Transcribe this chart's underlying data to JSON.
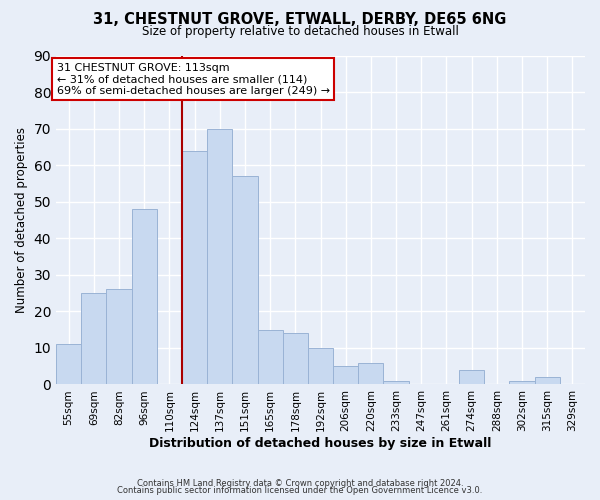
{
  "title1": "31, CHESTNUT GROVE, ETWALL, DERBY, DE65 6NG",
  "title2": "Size of property relative to detached houses in Etwall",
  "xlabel": "Distribution of detached houses by size in Etwall",
  "ylabel": "Number of detached properties",
  "bin_labels": [
    "55sqm",
    "69sqm",
    "82sqm",
    "96sqm",
    "110sqm",
    "124sqm",
    "137sqm",
    "151sqm",
    "165sqm",
    "178sqm",
    "192sqm",
    "206sqm",
    "220sqm",
    "233sqm",
    "247sqm",
    "261sqm",
    "274sqm",
    "288sqm",
    "302sqm",
    "315sqm",
    "329sqm"
  ],
  "bar_values": [
    11,
    25,
    26,
    48,
    0,
    64,
    70,
    57,
    15,
    14,
    10,
    5,
    6,
    1,
    0,
    0,
    4,
    0,
    1,
    2,
    0
  ],
  "bar_color": "#c8d9f0",
  "bar_edge_color": "#9ab3d5",
  "vline_position": 5,
  "vline_color": "#aa0000",
  "ylim": [
    0,
    90
  ],
  "yticks": [
    0,
    10,
    20,
    30,
    40,
    50,
    60,
    70,
    80,
    90
  ],
  "annotation_title": "31 CHESTNUT GROVE: 113sqm",
  "annotation_line1": "← 31% of detached houses are smaller (114)",
  "annotation_line2": "69% of semi-detached houses are larger (249) →",
  "annotation_box_color": "#ffffff",
  "annotation_box_edge": "#cc0000",
  "footer1": "Contains HM Land Registry data © Crown copyright and database right 2024.",
  "footer2": "Contains public sector information licensed under the Open Government Licence v3.0.",
  "background_color": "#e8eef8",
  "grid_color": "#d0d8e8",
  "num_bins": 21
}
